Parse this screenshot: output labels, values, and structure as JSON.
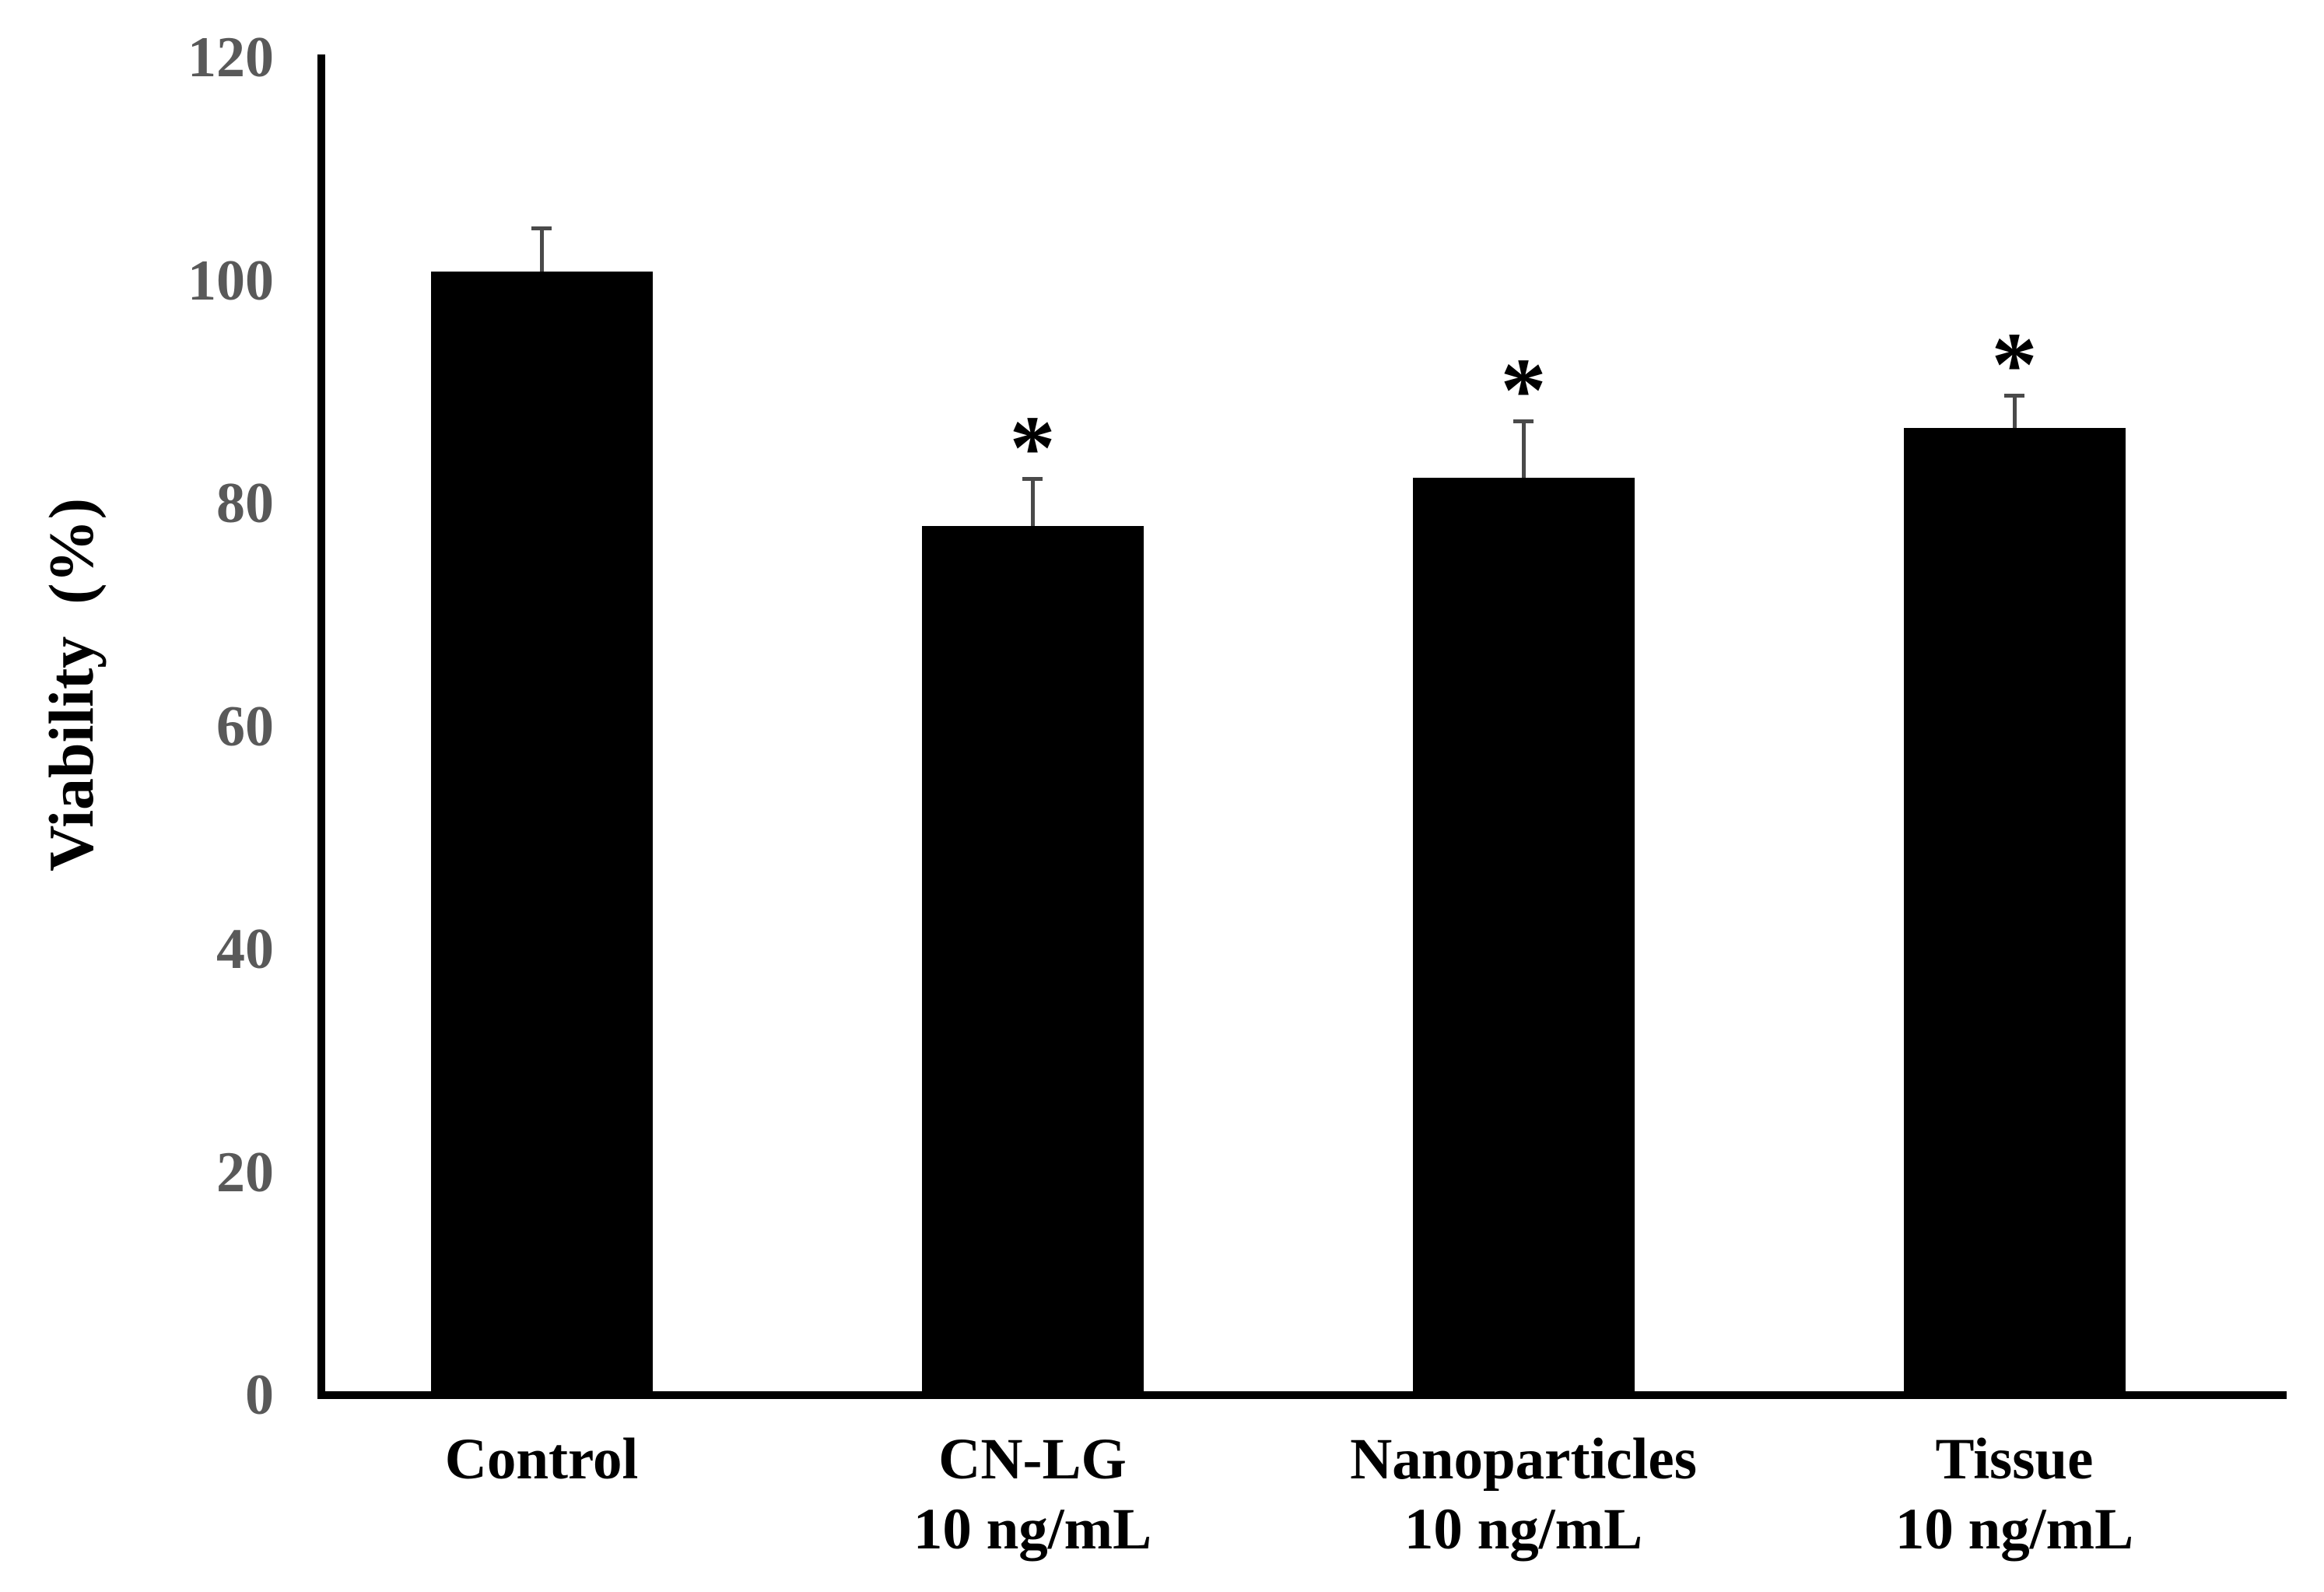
{
  "chart_data": {
    "type": "bar",
    "title": "",
    "ylabel": "Viability  (%)",
    "xlabel": "",
    "categories": [
      {
        "lines": [
          "Control"
        ]
      },
      {
        "lines": [
          "CN-LG",
          "10 ng/mL"
        ]
      },
      {
        "lines": [
          "Nanoparticles",
          "10 ng/mL"
        ]
      },
      {
        "lines": [
          "Tissue",
          "10 ng/mL"
        ]
      }
    ],
    "series": [
      {
        "name": "Viability",
        "values": [
          100.8,
          78.0,
          82.3,
          86.8
        ],
        "errors_plus": [
          3.9,
          4.2,
          5.1,
          2.9
        ],
        "significant": [
          false,
          true,
          true,
          true
        ]
      }
    ],
    "significance_marker": "*",
    "yticks": [
      0,
      20,
      40,
      60,
      80,
      100,
      120
    ],
    "ylim": [
      0,
      120
    ],
    "grid": false,
    "legend": "none",
    "colors": {
      "bar": "#000000",
      "axis": "#000000",
      "tick_label": "#595959",
      "category_label": "#000000",
      "error_bar": "#4a4a4a"
    }
  }
}
